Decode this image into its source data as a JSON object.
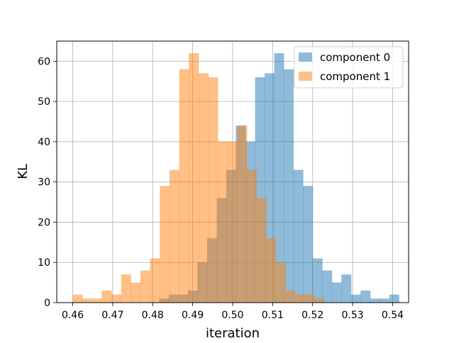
{
  "chart_data": {
    "type": "histogram",
    "title": "",
    "xlabel": "iteration",
    "ylabel": "KL",
    "xlim": [
      0.456,
      0.544
    ],
    "ylim": [
      0,
      65
    ],
    "grid": true,
    "legend_position": "top-right",
    "x_ticks": [
      0.46,
      0.47,
      0.48,
      0.49,
      0.5,
      0.51,
      0.52,
      0.53,
      0.54
    ],
    "y_ticks": [
      0,
      10,
      20,
      30,
      40,
      50,
      60
    ],
    "series": [
      {
        "name": "component 0",
        "color": "#1f77b4",
        "alpha": 0.5,
        "bin_start": 0.4816,
        "bin_width": 0.0024,
        "counts": [
          1,
          2,
          2,
          3,
          10,
          16,
          26,
          33,
          44,
          40,
          56,
          57,
          62,
          58,
          33,
          29,
          11,
          8,
          5,
          7,
          2,
          3,
          1,
          1,
          2
        ]
      },
      {
        "name": "component 1",
        "color": "#ff7f0e",
        "alpha": 0.5,
        "bin_start": 0.46,
        "bin_width": 0.00242,
        "counts": [
          2,
          1,
          1,
          3,
          2,
          7,
          5,
          8,
          11,
          29,
          33,
          58,
          62,
          57,
          56,
          40,
          40,
          44,
          33,
          26,
          16,
          10,
          3,
          2,
          2,
          1
        ]
      }
    ]
  }
}
